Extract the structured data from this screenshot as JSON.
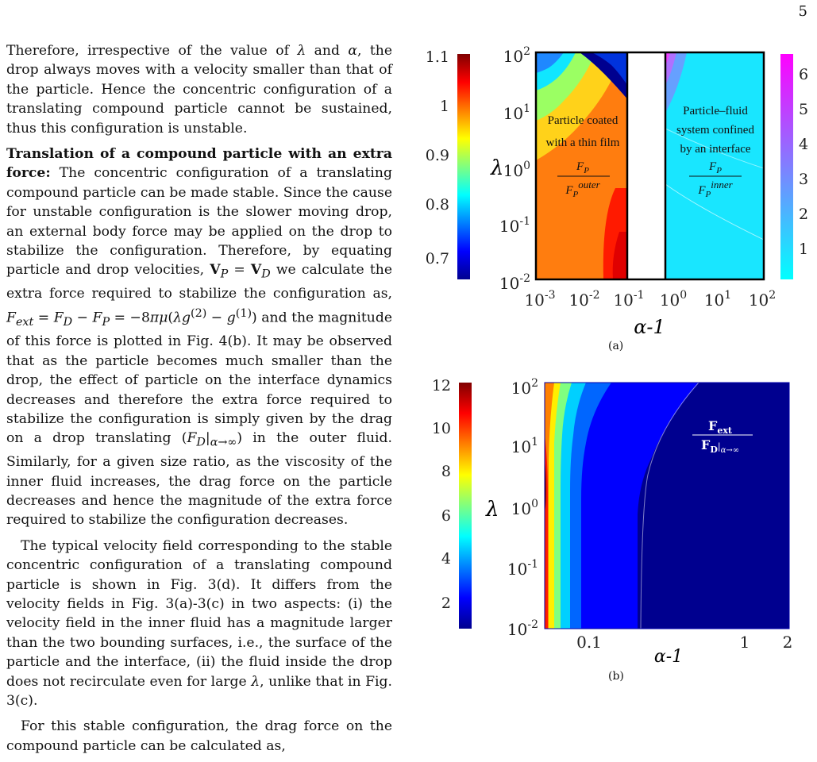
{
  "page_number": "5",
  "paragraphs": [
    {
      "text": "Therefore, irrespective of the value of λ and α, the drop always moves with a velocity smaller than that of the particle. Hence the concentric configuration of a translating compound particle cannot be sustained, thus this configuration is unstable."
    },
    {
      "heading": "Translation of a compound particle with an extra force:",
      "text": " The concentric configuration of a translating compound particle can be made stable. Since the cause for unstable configuration is the slower moving drop, an external body force may be applied on the drop to stabilize the configuration. Therefore, by equating particle and drop velocities, V_P = V_D we calculate the extra force required to stabilize the configuration as, F_ext = F_D − F_P = −8πμ(λg^(2) − g^(1)) and the magnitude of this force is plotted in Fig. 4(b). It may be observed that as the particle becomes much smaller than the drop, the effect of particle on the interface dynamics decreases and therefore the extra force required to stabilize the configuration is simply given by the drag on a drop translating (F_D|α→∞) in the outer fluid. Similarly, for a given size ratio, as the viscosity of the inner fluid increases, the drag force on the particle decreases and hence the magnitude of the extra force required to stabilize the configuration decreases."
    },
    {
      "text": "The typical velocity field corresponding to the stable concentric configuration of a translating compound particle is shown in Fig. 3(d). It differs from the velocity fields in Fig. 3(a)-3(c) in two aspects: (i) the velocity field in the inner fluid has a magnitude larger than the two bounding surfaces, i.e., the surface of the particle and the interface, (ii) the fluid inside the drop does not recirculate even for large λ, unlike that in Fig. 3(c)."
    },
    {
      "text": "For this stable configuration, the drag force on the compound particle can be calculated as,"
    }
  ],
  "figure_a": {
    "caption": "(a)",
    "left_colorbar_ticks": [
      "1.1",
      "1",
      "0.9",
      "0.8",
      "0.7"
    ],
    "right_colorbar_ticks": [
      "6",
      "5",
      "4",
      "3",
      "2",
      "1"
    ],
    "y_ticks": [
      "10^2",
      "10^1",
      "10^0",
      "10^-1",
      "10^-2"
    ],
    "x_ticks": [
      "10^-3",
      "10^-2",
      "10^-1",
      "10^0",
      "10^1",
      "10^2"
    ],
    "xlabel": "α-1",
    "ylabel": "λ",
    "left_label_1": "Particle coated",
    "left_label_2": "with a thin film",
    "left_ratio_num": "F_P",
    "left_ratio_den": "F_P^outer",
    "right_label_1": "Particle–fluid",
    "right_label_2": "system confined",
    "right_label_3": "by an interface",
    "right_ratio_num": "F_P",
    "right_ratio_den": "F_P^inner"
  },
  "figure_b": {
    "caption": "(b)",
    "colorbar_ticks": [
      "12",
      "10",
      "8",
      "6",
      "4",
      "2"
    ],
    "y_ticks": [
      "10^2",
      "10^1",
      "10^0",
      "10^-1",
      "10^-2"
    ],
    "x_ticks": [
      "0.1",
      "1",
      "2"
    ],
    "xlabel": "α-1",
    "ylabel": "λ",
    "ratio_num": "F_ext",
    "ratio_den": "F_D|α→∞"
  },
  "colors": {
    "jet_dark_blue": "#00008f",
    "jet_red": "#ff1a00",
    "orange_fill": "#ff7d0f",
    "cyan_fill": "#19e6ff"
  }
}
